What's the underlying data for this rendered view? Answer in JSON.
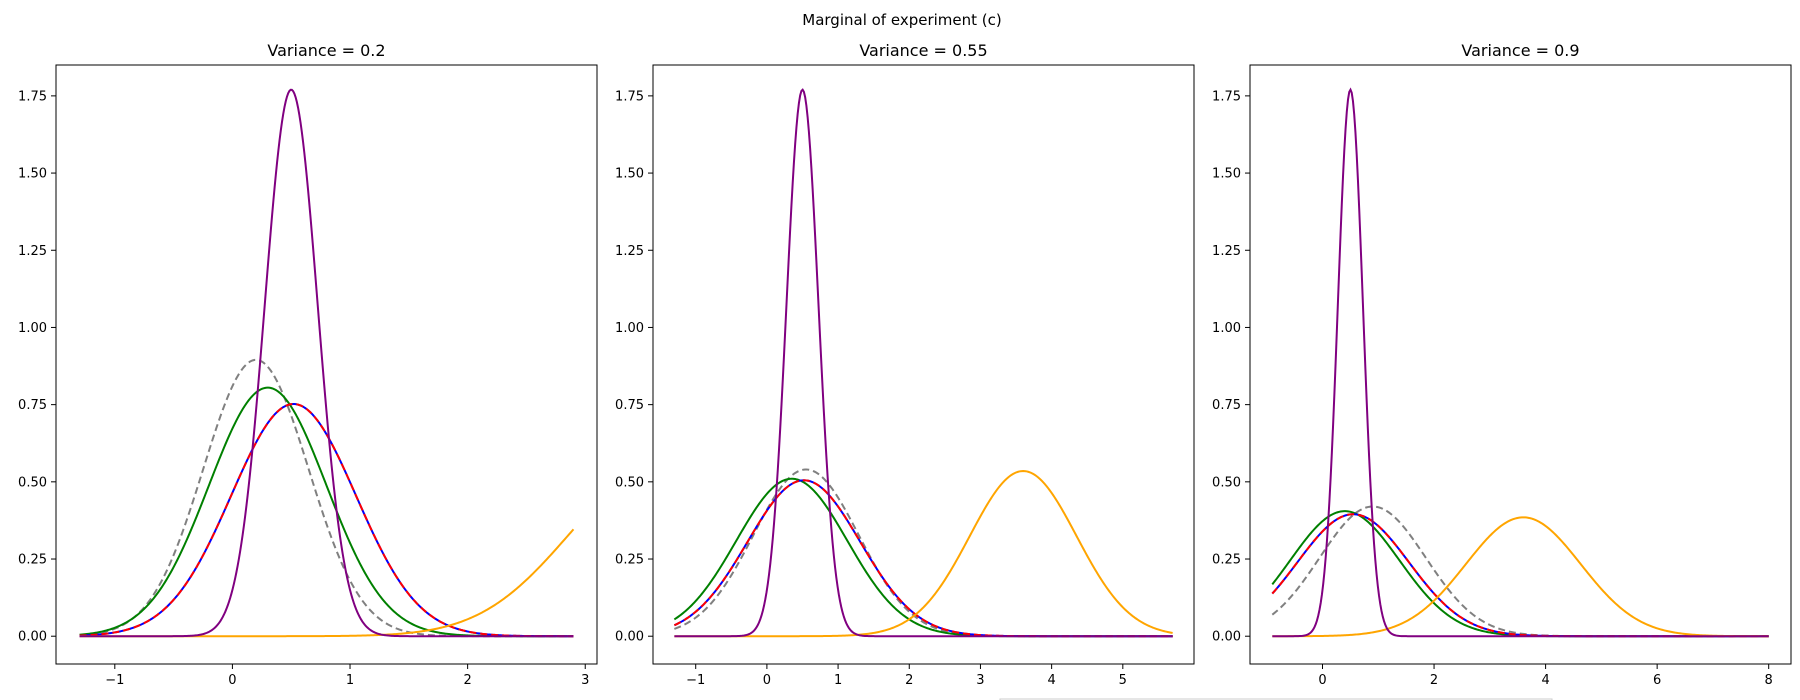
{
  "figure": {
    "title": "Marginal of experiment (c)"
  },
  "chart_data": [
    {
      "type": "line",
      "title": "Variance = 0.2",
      "xlim": [
        -1.5,
        3.1
      ],
      "ylim": [
        -0.09,
        1.85
      ],
      "xticks": [
        "−1",
        "0",
        "1",
        "2",
        "3"
      ],
      "yticks": [
        "0.00",
        "0.25",
        "0.50",
        "0.75",
        "1.00",
        "1.25",
        "1.50",
        "1.75"
      ],
      "series": [
        {
          "color": "#808080",
          "dash": true,
          "curve": {
            "kind": "gauss",
            "amp": 0.895,
            "mu": 0.2,
            "sigma": 0.447
          }
        },
        {
          "color": "#008000",
          "dash": false,
          "curve": {
            "kind": "gauss",
            "amp": 0.805,
            "mu": 0.3,
            "sigma": 0.5
          }
        },
        {
          "color": "#0000ff",
          "dash": false,
          "curve": {
            "kind": "gauss",
            "amp": 0.752,
            "mu": 0.52,
            "sigma": 0.53
          }
        },
        {
          "color": "#ff0000",
          "dash": true,
          "curve": {
            "kind": "gauss",
            "amp": 0.752,
            "mu": 0.52,
            "sigma": 0.53
          }
        },
        {
          "color": "#ffa500",
          "dash": false,
          "curve": {
            "kind": "gauss",
            "amp": 0.535,
            "mu": 3.6,
            "sigma": 0.75
          }
        },
        {
          "color": "#800080",
          "dash": false,
          "curve": {
            "kind": "gauss",
            "amp": 1.77,
            "mu": 0.5,
            "sigma": 0.225
          }
        }
      ],
      "x_range": [
        -1.3,
        2.9
      ]
    },
    {
      "type": "line",
      "title": "Variance = 0.55",
      "xlim": [
        -1.6,
        6.0
      ],
      "ylim": [
        -0.09,
        1.85
      ],
      "xticks": [
        "−1",
        "0",
        "1",
        "2",
        "3",
        "4",
        "5"
      ],
      "yticks": [
        "0.00",
        "0.25",
        "0.50",
        "0.75",
        "1.00",
        "1.25",
        "1.50",
        "1.75"
      ],
      "series": [
        {
          "color": "#808080",
          "dash": true,
          "curve": {
            "kind": "gauss",
            "amp": 0.54,
            "mu": 0.55,
            "sigma": 0.74
          }
        },
        {
          "color": "#008000",
          "dash": false,
          "curve": {
            "kind": "gauss",
            "amp": 0.51,
            "mu": 0.35,
            "sigma": 0.78
          }
        },
        {
          "color": "#0000ff",
          "dash": false,
          "curve": {
            "kind": "gauss",
            "amp": 0.505,
            "mu": 0.52,
            "sigma": 0.79
          }
        },
        {
          "color": "#ff0000",
          "dash": true,
          "curve": {
            "kind": "gauss",
            "amp": 0.505,
            "mu": 0.52,
            "sigma": 0.79
          }
        },
        {
          "color": "#ffa500",
          "dash": false,
          "curve": {
            "kind": "gauss",
            "amp": 0.535,
            "mu": 3.6,
            "sigma": 0.75
          }
        },
        {
          "color": "#800080",
          "dash": false,
          "curve": {
            "kind": "gauss",
            "amp": 1.77,
            "mu": 0.5,
            "sigma": 0.225
          }
        }
      ],
      "x_range": [
        -1.3,
        5.7
      ]
    },
    {
      "type": "line",
      "title": "Variance = 0.9",
      "xlim": [
        -1.3,
        8.4
      ],
      "ylim": [
        -0.09,
        1.85
      ],
      "xticks": [
        "0",
        "2",
        "4",
        "6",
        "8"
      ],
      "yticks": [
        "0.00",
        "0.25",
        "0.50",
        "0.75",
        "1.00",
        "1.25",
        "1.50",
        "1.75"
      ],
      "series": [
        {
          "color": "#808080",
          "dash": true,
          "curve": {
            "kind": "gauss",
            "amp": 0.42,
            "mu": 0.9,
            "sigma": 0.95
          }
        },
        {
          "color": "#008000",
          "dash": false,
          "curve": {
            "kind": "gauss",
            "amp": 0.405,
            "mu": 0.4,
            "sigma": 0.98
          }
        },
        {
          "color": "#0000ff",
          "dash": false,
          "curve": {
            "kind": "gauss",
            "amp": 0.395,
            "mu": 0.55,
            "sigma": 1.0
          }
        },
        {
          "color": "#ff0000",
          "dash": true,
          "curve": {
            "kind": "gauss",
            "amp": 0.395,
            "mu": 0.55,
            "sigma": 1.0
          }
        },
        {
          "color": "#ffa500",
          "dash": false,
          "curve": {
            "kind": "gauss",
            "amp": 0.385,
            "mu": 3.6,
            "sigma": 1.03
          }
        },
        {
          "color": "#800080",
          "dash": false,
          "curve": {
            "kind": "gauss",
            "amp": 1.77,
            "mu": 0.5,
            "sigma": 0.225
          }
        }
      ],
      "x_range": [
        -0.9,
        8.0
      ]
    }
  ]
}
